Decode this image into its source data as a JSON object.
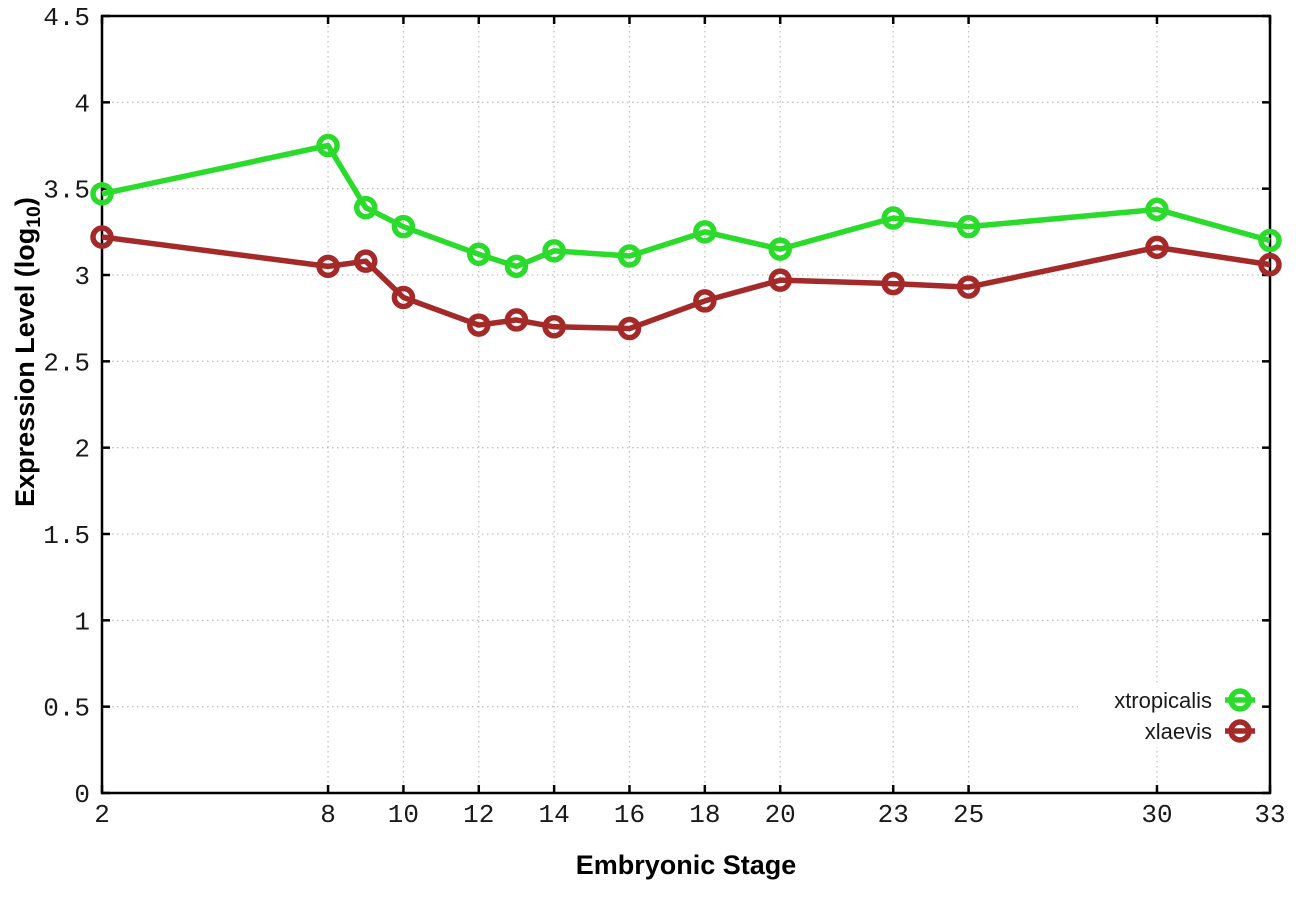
{
  "chart_data": {
    "type": "line",
    "title": "",
    "xlabel": "Embryonic Stage",
    "ylabel": "Expression Level (log10)",
    "ylabel_rich": {
      "main": "Expression Level (log",
      "sub": "10",
      "end": ")"
    },
    "x_axis": {
      "min": 2,
      "max": 33,
      "ticks": [
        2,
        8,
        10,
        12,
        14,
        16,
        18,
        20,
        23,
        25,
        30,
        33
      ]
    },
    "y_axis": {
      "min": 0,
      "max": 4.5,
      "ticks": [
        0,
        0.5,
        1,
        1.5,
        2,
        2.5,
        3,
        3.5,
        4,
        4.5
      ]
    },
    "grid": "dotted",
    "legend": {
      "position": "bottom-right",
      "entries": [
        "xtropicalis",
        "xlaevis"
      ]
    },
    "x": [
      2,
      8,
      9,
      10,
      12,
      13,
      14,
      16,
      18,
      20,
      23,
      25,
      30,
      33
    ],
    "series": [
      {
        "name": "xtropicalis",
        "color": "#2bdb2b",
        "marker": "open-circle",
        "values": [
          3.47,
          3.75,
          3.39,
          3.28,
          3.12,
          3.05,
          3.14,
          3.11,
          3.25,
          3.15,
          3.33,
          3.28,
          3.38,
          3.2
        ]
      },
      {
        "name": "xlaevis",
        "color": "#a42a2a",
        "marker": "open-circle",
        "values": [
          3.22,
          3.05,
          3.08,
          2.87,
          2.71,
          2.74,
          2.7,
          2.69,
          2.85,
          2.97,
          2.95,
          2.93,
          3.16,
          3.06
        ]
      }
    ]
  },
  "style": {
    "axis_color": "#000000",
    "grid_color": "#c2c2c2",
    "text_color": "#1a1a1a",
    "plot_background": "#ffffff"
  }
}
